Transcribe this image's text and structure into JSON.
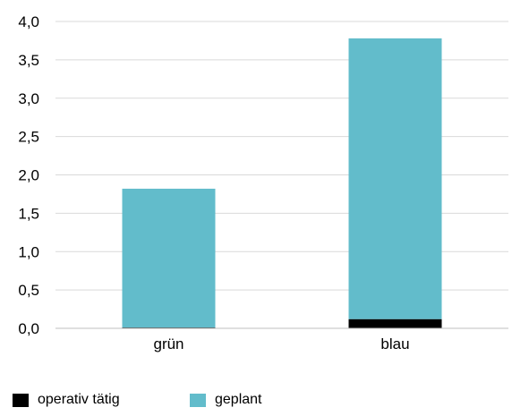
{
  "chart_data": {
    "type": "bar",
    "stacked": true,
    "categories": [
      "grün",
      "blau"
    ],
    "series": [
      {
        "name": "operativ tätig",
        "values": [
          0.01,
          0.12
        ],
        "color": "#000000"
      },
      {
        "name": "geplant",
        "values": [
          1.81,
          3.66
        ],
        "color": "#62bccb"
      }
    ],
    "title": "",
    "xlabel": "",
    "ylabel": "",
    "ylim": [
      0,
      4
    ],
    "yticks": [
      "0,0",
      "0,5",
      "1,0",
      "1,5",
      "2,0",
      "2,5",
      "3,0",
      "3,5",
      "4,0"
    ],
    "grid": true,
    "legend_position": "bottom-left"
  }
}
